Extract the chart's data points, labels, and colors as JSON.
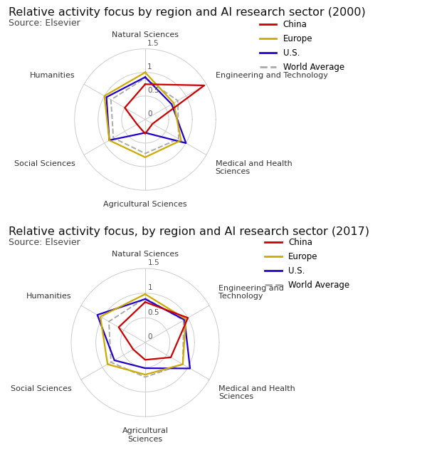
{
  "title1": "Relative activity focus by region and AI research sector (2000)",
  "title2": "Relative activity focus, by region and AI research sector (2017)",
  "source": "Source: Elsevier",
  "categories_2000": [
    "Natural Sciences",
    "Engineering and Technology",
    "Medical and Health\nSciences",
    "Agricultural Sciences",
    "Social Sciences",
    "Humanities"
  ],
  "categories_2017": [
    "Natural Sciences",
    "Engineering and\nTechnology",
    "Medical and Health\nSciences",
    "Agricultural\nSciences",
    "Social Sciences",
    "Humanities"
  ],
  "r_max": 1.5,
  "data_2000": {
    "China": [
      0.75,
      1.45,
      0.18,
      0.3,
      0.2,
      0.5
    ],
    "Europe": [
      1.0,
      0.7,
      0.88,
      0.8,
      0.88,
      1.0
    ],
    "US": [
      0.9,
      0.65,
      1.0,
      0.28,
      0.88,
      0.95
    ],
    "WorldAverage": [
      0.88,
      0.8,
      0.82,
      0.72,
      0.78,
      0.84
    ]
  },
  "data_2017": {
    "China": [
      0.82,
      1.0,
      0.6,
      0.35,
      0.28,
      0.62
    ],
    "Europe": [
      0.98,
      0.95,
      0.88,
      0.65,
      0.88,
      1.05
    ],
    "US": [
      0.88,
      0.92,
      1.05,
      0.52,
      0.72,
      1.12
    ],
    "WorldAverage": [
      0.9,
      0.9,
      0.88,
      0.7,
      0.8,
      0.85
    ]
  },
  "colors": {
    "China": "#cc0000",
    "Europe": "#ccaa00",
    "US": "#2200cc",
    "WorldAverage": "#aaaaaa"
  },
  "background_color": "#ffffff",
  "title_fontsize": 11.5,
  "source_fontsize": 9,
  "label_fontsize": 8,
  "tick_fontsize": 7.5
}
